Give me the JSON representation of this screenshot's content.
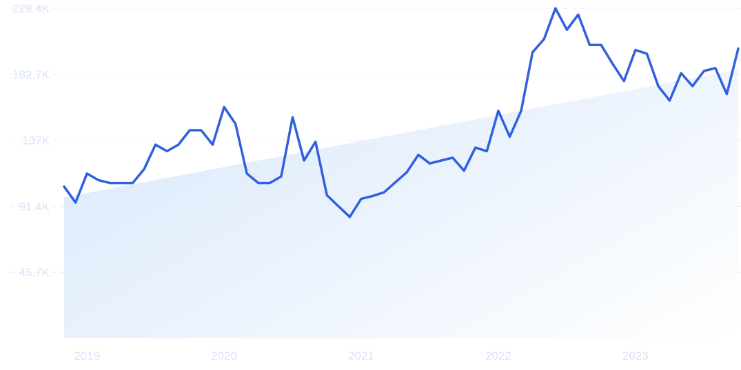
{
  "chart_data": {
    "type": "line",
    "title": "",
    "xlabel": "",
    "ylabel": "",
    "ylim": [
      0,
      228400
    ],
    "xlim": [
      "2018-11",
      "2023-10"
    ],
    "y_ticks": [
      {
        "value": 45700,
        "label": "45.7K"
      },
      {
        "value": 91400,
        "label": "91.4K"
      },
      {
        "value": 137000,
        "label": "137K"
      },
      {
        "value": 182700,
        "label": "182.7K"
      },
      {
        "value": 228400,
        "label": "228.4K"
      }
    ],
    "x_ticks": [
      {
        "value": "2019-01",
        "label": "2019"
      },
      {
        "value": "2020-01",
        "label": "2020"
      },
      {
        "value": "2021-01",
        "label": "2021"
      },
      {
        "value": "2022-01",
        "label": "2022"
      },
      {
        "value": "2023-01",
        "label": "2023"
      }
    ],
    "grid": true,
    "legend": "none",
    "series": [
      {
        "x": [
          "2018-11",
          "2018-12",
          "2019-01",
          "2019-02",
          "2019-03",
          "2019-04",
          "2019-05",
          "2019-06",
          "2019-07",
          "2019-08",
          "2019-09",
          "2019-10",
          "2019-11",
          "2019-12",
          "2020-01",
          "2020-02",
          "2020-03",
          "2020-04",
          "2020-05",
          "2020-06",
          "2020-07",
          "2020-08",
          "2020-09",
          "2020-10",
          "2020-11",
          "2020-12",
          "2021-01",
          "2021-02",
          "2021-03",
          "2021-04",
          "2021-05",
          "2021-06",
          "2021-07",
          "2021-08",
          "2021-09",
          "2021-10",
          "2021-11",
          "2021-12",
          "2022-01",
          "2022-02",
          "2022-03",
          "2022-04",
          "2022-05",
          "2022-06",
          "2022-07",
          "2022-08",
          "2022-09",
          "2022-10",
          "2022-11",
          "2022-12",
          "2023-01",
          "2023-02",
          "2023-03",
          "2023-04",
          "2023-05",
          "2023-06",
          "2023-07",
          "2023-08",
          "2023-09",
          "2023-10"
        ],
        "values": [
          105000,
          94000,
          114000,
          109500,
          107500,
          107500,
          107500,
          117000,
          134000,
          129500,
          134000,
          144000,
          144000,
          134000,
          160000,
          148500,
          114000,
          107500,
          107500,
          112000,
          153000,
          123000,
          136000,
          99000,
          91500,
          84000,
          96500,
          98500,
          101000,
          108000,
          115000,
          127000,
          121000,
          123000,
          125000,
          116000,
          132000,
          129500,
          157500,
          139500,
          157500,
          198000,
          207000,
          228400,
          213500,
          224000,
          203000,
          203000,
          190000,
          178000,
          199500,
          197000,
          174500,
          164500,
          183500,
          174500,
          185000,
          187000,
          169000,
          200500
        ],
        "color": "#3060e0"
      }
    ],
    "trend_area": {
      "start": {
        "x": "2018-11",
        "value": 97500
      },
      "end": {
        "x": "2023-10",
        "value": 186000
      }
    },
    "colors": {
      "line": "#3060e0",
      "area_start": "#ddeafb",
      "area_end": "#ffffff",
      "grid": "#e7ebf3",
      "tick_text": "#dbe4f6"
    }
  }
}
